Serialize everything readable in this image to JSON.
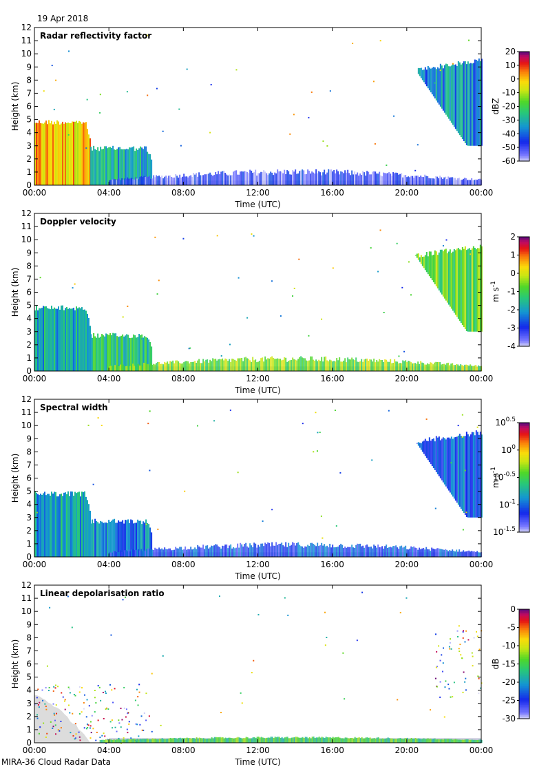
{
  "date": "19 Apr 2018",
  "footer": "MIRA-36 Cloud Radar Data",
  "x_axis": {
    "label": "Time (UTC)",
    "ticks": [
      "00:00",
      "04:00",
      "08:00",
      "12:00",
      "16:00",
      "20:00",
      "00:00"
    ],
    "range_hours": [
      0,
      24
    ]
  },
  "y_axis": {
    "label": "Height (km)",
    "range_km": [
      0,
      12
    ],
    "ticks": [
      "0",
      "1",
      "2",
      "3",
      "4",
      "5",
      "6",
      "7",
      "8",
      "9",
      "10",
      "11",
      "12"
    ]
  },
  "colors": {
    "noise_gray": "#c8c8dc",
    "gray_fill": "#dcdcdc"
  },
  "chart_data": [
    {
      "type": "heatmap",
      "title": "Radar reflectivity factor",
      "colorbar": {
        "unit": "dBZ",
        "range": [
          -60,
          20
        ],
        "tick_labels": [
          "20",
          "10",
          "0",
          "-10",
          "-20",
          "-30",
          "-40",
          "-50",
          "-60"
        ]
      },
      "features": [
        {
          "description": "low cloud",
          "t_start": 0,
          "t_end": 3.0,
          "top_km": 5.0,
          "value": 0
        },
        {
          "description": "cloud deck",
          "t_start": 3.0,
          "t_end": 6.3,
          "top_km": 3.0,
          "value": -30
        },
        {
          "description": "high cloud",
          "t_start": 20.0,
          "t_end": 24,
          "bottom_km": 3.0,
          "top_km": 9.7,
          "value": -35
        },
        {
          "description": "boundary layer echo",
          "t_start": 4,
          "t_end": 24,
          "top_km": 1.0,
          "value": -50
        }
      ]
    },
    {
      "type": "heatmap",
      "title": "Doppler velocity",
      "colorbar": {
        "unit": "m s",
        "unit_superscript": "-1",
        "range": [
          -4,
          2
        ],
        "tick_labels": [
          "2",
          "1",
          "0",
          "-1",
          "-2",
          "-3",
          "-4"
        ]
      },
      "features": [
        {
          "description": "low cloud",
          "t_start": 0,
          "t_end": 3.0,
          "top_km": 5.0,
          "value": -1.8
        },
        {
          "description": "cloud deck",
          "t_start": 3.0,
          "t_end": 6.3,
          "top_km": 2.9,
          "value": -1.3
        },
        {
          "description": "high cloud",
          "t_start": 20.0,
          "t_end": 24,
          "bottom_km": 3.0,
          "top_km": 9.7,
          "value": -0.7
        },
        {
          "description": "boundary layer",
          "t_start": 4,
          "t_end": 24,
          "top_km": 0.9,
          "value": -0.5
        }
      ]
    },
    {
      "type": "heatmap",
      "title": "Spectral width",
      "colorbar": {
        "unit": "m s",
        "unit_superscript": "-1",
        "scale": "log10",
        "range_log10": [
          -1.5,
          0.5
        ],
        "tick_labels": [
          {
            "base": "10",
            "exp": "0.5"
          },
          {
            "base": "10",
            "exp": "0"
          },
          {
            "base": "10",
            "exp": "-0.5"
          },
          {
            "base": "10",
            "exp": "-1"
          },
          {
            "base": "10",
            "exp": "-1.5"
          }
        ]
      },
      "features": [
        {
          "description": "low cloud",
          "t_start": 0,
          "t_end": 3.0,
          "top_km": 5.0,
          "value": -0.8
        },
        {
          "description": "cloud deck",
          "t_start": 3.0,
          "t_end": 6.3,
          "top_km": 2.9,
          "value": -0.9
        },
        {
          "description": "high cloud",
          "t_start": 20.0,
          "t_end": 24,
          "bottom_km": 3.0,
          "top_km": 9.7,
          "value": -1.0
        },
        {
          "description": "boundary layer",
          "t_start": 4,
          "t_end": 24,
          "top_km": 0.9,
          "value": -1.1
        }
      ]
    },
    {
      "type": "heatmap",
      "title": "Linear depolarisation ratio",
      "colorbar": {
        "unit": "dB",
        "range": [
          -30,
          0
        ],
        "tick_labels": [
          "0",
          "-5",
          "-10",
          "-15",
          "-20",
          "-25",
          "-30"
        ]
      },
      "features": [
        {
          "description": "low cloud (gray)",
          "t_start": 0,
          "t_end": 3.0,
          "top_km": 3.5
        },
        {
          "description": "sparse points",
          "t_start": 0,
          "t_end": 6.3,
          "top_km": 4.5
        },
        {
          "description": "surface layer",
          "t_start": 3.5,
          "t_end": 24,
          "top_km": 0.3,
          "value": -15
        },
        {
          "description": "high cloud points",
          "t_start": 21.5,
          "t_end": 24,
          "bottom_km": 3.5,
          "top_km": 9.0
        }
      ]
    }
  ]
}
